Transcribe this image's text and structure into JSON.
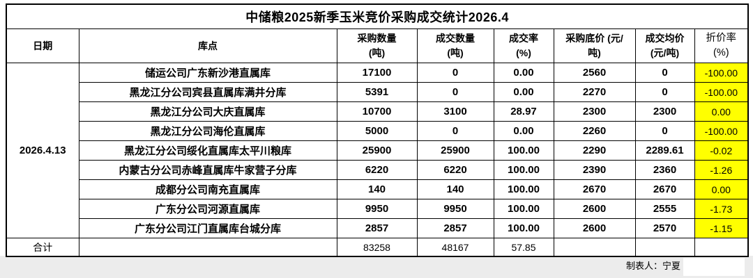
{
  "title": "中储粮2025新季玉米竞价采购成交统计2026.4",
  "date": "2026.4.13",
  "columns": [
    {
      "label": "日期"
    },
    {
      "label": "库点"
    },
    {
      "label": "采购数量\n(吨)"
    },
    {
      "label": "成交数量\n(吨)"
    },
    {
      "label": "成交率\n(%)"
    },
    {
      "label": "采购底价 (元/\n吨)"
    },
    {
      "label": "成交均价\n(元/吨)"
    },
    {
      "label": "折价率\n(%)"
    }
  ],
  "rows": [
    {
      "warehouse": "储运公司广东新沙港直属库",
      "purchase_qty": "17100",
      "deal_qty": "0",
      "deal_rate": "0.00",
      "base_price": "2560",
      "avg_price": "0",
      "discount_rate": "-100.00"
    },
    {
      "warehouse": "黑龙江分公司宾县直属库满井分库",
      "purchase_qty": "5391",
      "deal_qty": "0",
      "deal_rate": "0.00",
      "base_price": "2270",
      "avg_price": "0",
      "discount_rate": "-100.00"
    },
    {
      "warehouse": "黑龙江分公司大庆直属库",
      "purchase_qty": "10700",
      "deal_qty": "3100",
      "deal_rate": "28.97",
      "base_price": "2300",
      "avg_price": "2300",
      "discount_rate": "0.00"
    },
    {
      "warehouse": "黑龙江分公司海伦直属库",
      "purchase_qty": "5000",
      "deal_qty": "0",
      "deal_rate": "0.00",
      "base_price": "2260",
      "avg_price": "0",
      "discount_rate": "-100.00"
    },
    {
      "warehouse": "黑龙江分公司绥化直属库太平川粮库",
      "purchase_qty": "25900",
      "deal_qty": "25900",
      "deal_rate": "100.00",
      "base_price": "2290",
      "avg_price": "2289.61",
      "discount_rate": "-0.02"
    },
    {
      "warehouse": "内蒙古分公司赤峰直属库牛家营子分库",
      "purchase_qty": "6220",
      "deal_qty": "6220",
      "deal_rate": "100.00",
      "base_price": "2390",
      "avg_price": "2360",
      "discount_rate": "-1.26"
    },
    {
      "warehouse": "成都分公司南充直属库",
      "purchase_qty": "140",
      "deal_qty": "140",
      "deal_rate": "100.00",
      "base_price": "2670",
      "avg_price": "2670",
      "discount_rate": "0.00"
    },
    {
      "warehouse": "广东分公司河源直属库",
      "purchase_qty": "9950",
      "deal_qty": "9950",
      "deal_rate": "100.00",
      "base_price": "2600",
      "avg_price": "2555",
      "discount_rate": "-1.73"
    },
    {
      "warehouse": "广东分公司江门直属库台城分库",
      "purchase_qty": "2857",
      "deal_qty": "2857",
      "deal_rate": "100.00",
      "base_price": "2600",
      "avg_price": "2570",
      "discount_rate": "-1.15"
    }
  ],
  "total": {
    "label": "合计",
    "purchase_qty": "83258",
    "deal_qty": "48167",
    "deal_rate": "57.85"
  },
  "footer": {
    "creator_label": "制表人：宁夏"
  },
  "colors": {
    "highlight": "#FFFF00",
    "page_strip": "#ECECEC",
    "border": "#000000"
  }
}
